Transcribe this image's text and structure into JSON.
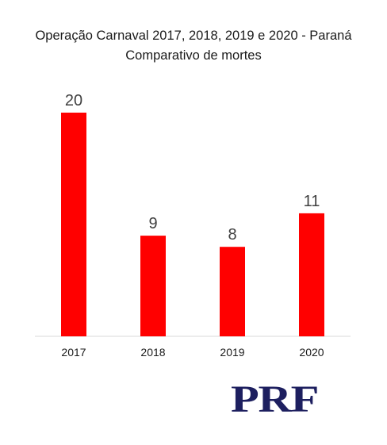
{
  "title": {
    "line1": "Operação Carnaval 2017, 2018, 2019 e 2020 - Paraná",
    "line2": "Comparativo de mortes"
  },
  "logo_text": "PRF",
  "colors": {
    "bar": "#ff0000",
    "axis": "#d9d9d9",
    "label": "#404040",
    "logo": "#1d1f5f"
  },
  "chart_data": {
    "type": "bar",
    "title": "Operação Carnaval 2017, 2018, 2019 e 2020 - Paraná",
    "subtitle": "Comparativo de mortes",
    "categories": [
      "2017",
      "2018",
      "2019",
      "2020"
    ],
    "values": [
      20,
      9,
      8,
      11
    ],
    "ylim": [
      0,
      20
    ],
    "grid": false,
    "legend": "none",
    "data_labels": true
  }
}
